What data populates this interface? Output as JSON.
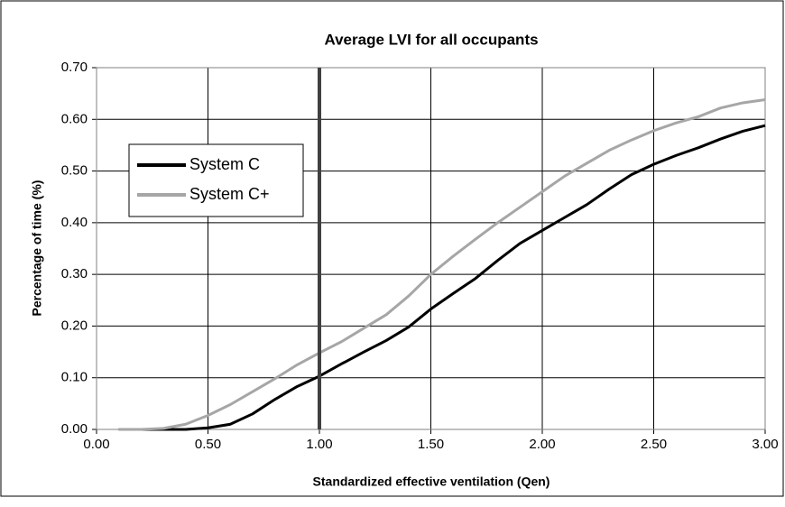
{
  "chart_data": {
    "type": "line",
    "title": "Average LVI for all occupants",
    "xlabel": "Standardized effective ventilation (Qen)",
    "ylabel": "Percentage of time (%)",
    "x": [
      0.1,
      0.2,
      0.3,
      0.4,
      0.5,
      0.6,
      0.7,
      0.8,
      0.9,
      1.0,
      1.1,
      1.2,
      1.3,
      1.4,
      1.5,
      1.6,
      1.7,
      1.8,
      1.9,
      2.0,
      2.1,
      2.2,
      2.3,
      2.4,
      2.5,
      2.6,
      2.7,
      2.8,
      2.9,
      3.0
    ],
    "series": [
      {
        "name": "System C",
        "color": "#000000",
        "values": [
          0,
          0,
          0,
          0,
          0.003,
          0.01,
          0.03,
          0.058,
          0.083,
          0.103,
          0.127,
          0.15,
          0.172,
          0.198,
          0.233,
          0.263,
          0.292,
          0.327,
          0.36,
          0.385,
          0.41,
          0.435,
          0.465,
          0.493,
          0.513,
          0.53,
          0.545,
          0.562,
          0.577,
          0.588
        ]
      },
      {
        "name": "System C+",
        "color": "#a6a6a6",
        "values": [
          0,
          0,
          0.002,
          0.01,
          0.027,
          0.048,
          0.073,
          0.098,
          0.125,
          0.148,
          0.17,
          0.196,
          0.222,
          0.258,
          0.3,
          0.335,
          0.368,
          0.4,
          0.43,
          0.46,
          0.49,
          0.515,
          0.54,
          0.56,
          0.578,
          0.593,
          0.605,
          0.622,
          0.632,
          0.638
        ]
      }
    ],
    "xlim": [
      0,
      3
    ],
    "ylim": [
      0,
      0.7
    ],
    "xticks": [
      {
        "value": 0,
        "label": "0.00"
      },
      {
        "value": 0.5,
        "label": "0.50"
      },
      {
        "value": 1,
        "label": "1.00"
      },
      {
        "value": 1.5,
        "label": "1.50"
      },
      {
        "value": 2,
        "label": "2.00"
      },
      {
        "value": 2.5,
        "label": "2.50"
      },
      {
        "value": 3,
        "label": "3.00"
      }
    ],
    "yticks": [
      {
        "value": 0,
        "label": "0.00"
      },
      {
        "value": 0.1,
        "label": "0.10"
      },
      {
        "value": 0.2,
        "label": "0.20"
      },
      {
        "value": 0.3,
        "label": "0.30"
      },
      {
        "value": 0.4,
        "label": "0.40"
      },
      {
        "value": 0.5,
        "label": "0.50"
      },
      {
        "value": 0.6,
        "label": "0.60"
      },
      {
        "value": 0.7,
        "label": "0.70"
      }
    ],
    "vline": 1,
    "vline_color": "#404040",
    "grid": true,
    "legend": "upper left"
  }
}
